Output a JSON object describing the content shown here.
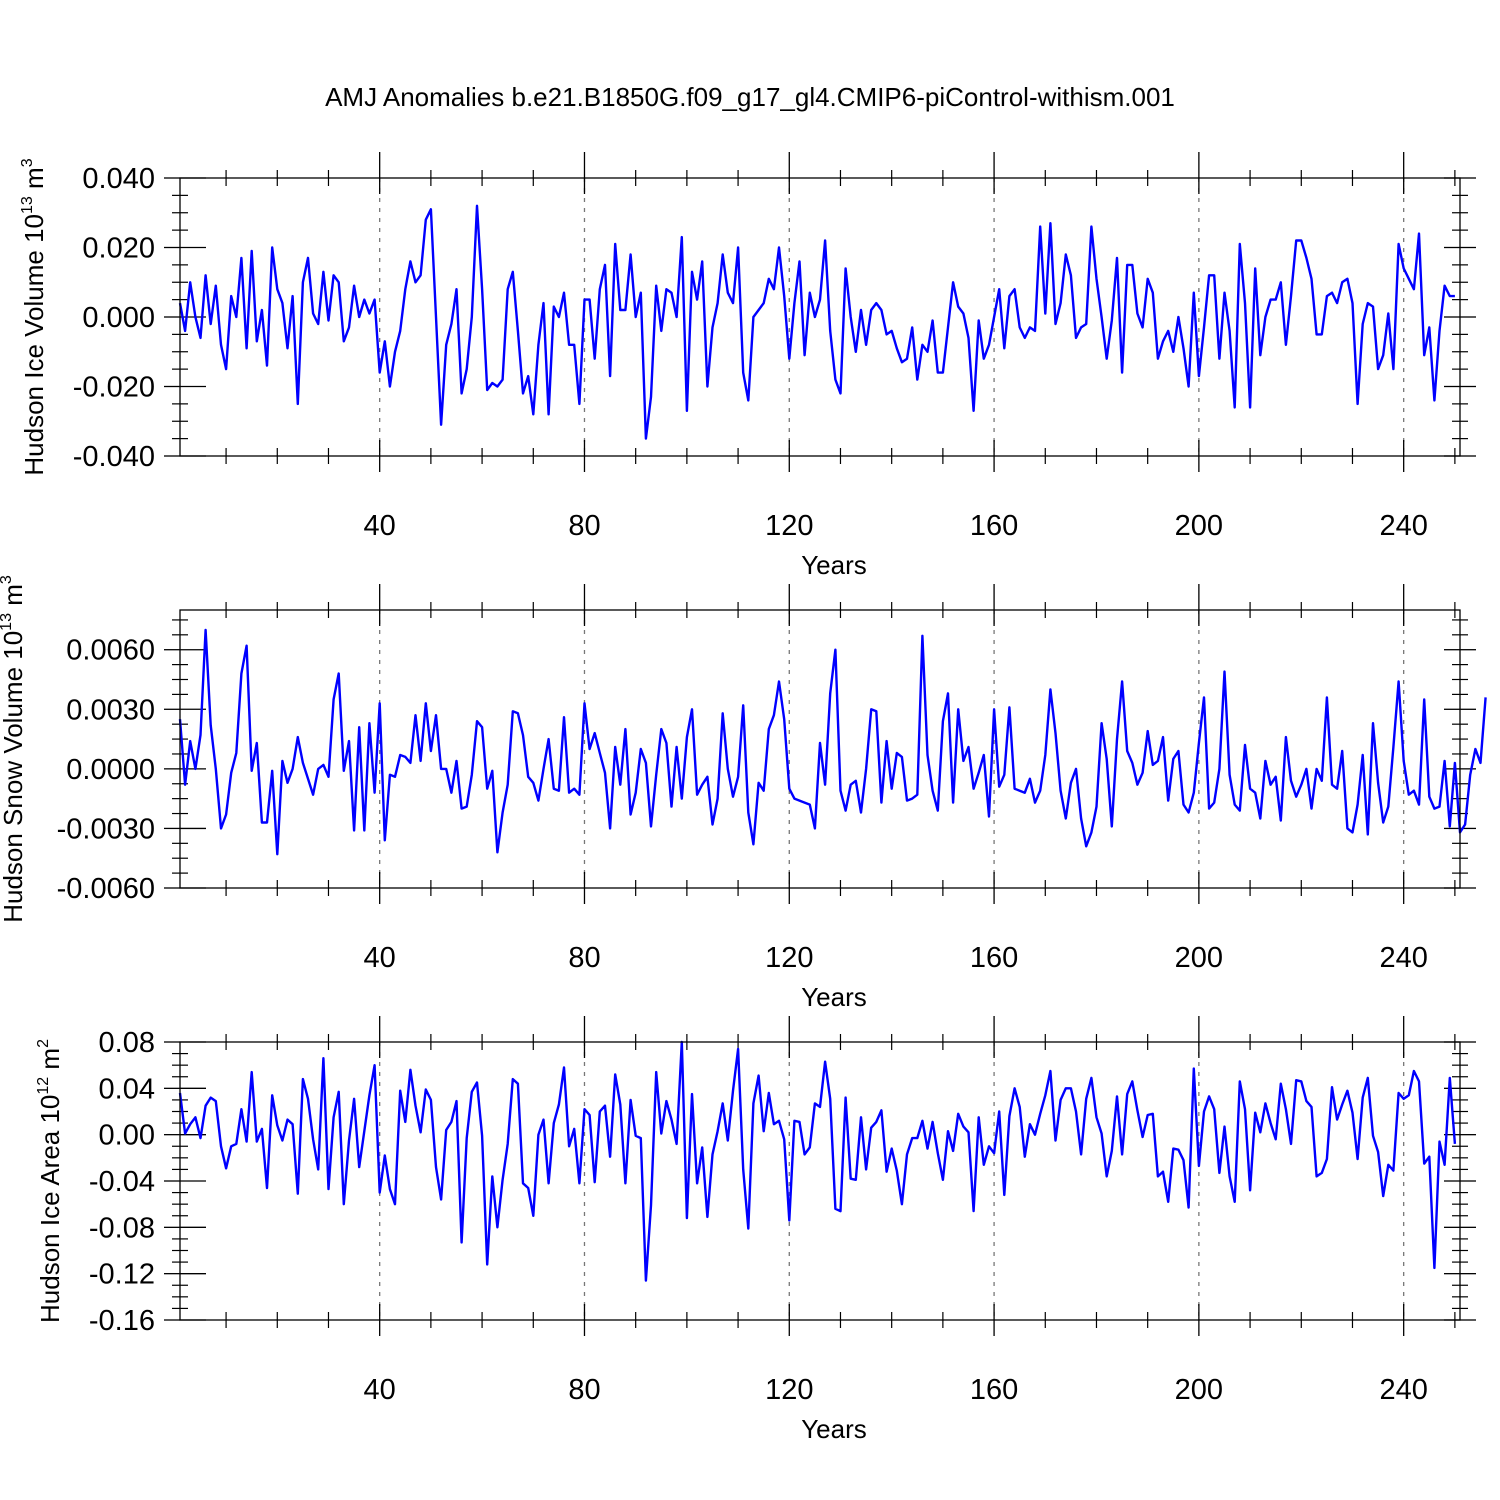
{
  "title": "AMJ Anomalies b.e21.B1850G.f09_g17_gl4.CMIP6-piControl-withism.001",
  "colors": {
    "series": "#0000ff",
    "axis": "#000000",
    "grid": "#777777"
  },
  "chart_data": [
    {
      "type": "line",
      "name": "ice-volume",
      "ylabel": "Hudson Ice Volume",
      "yunits": {
        "base": "10",
        "exp": "13",
        "unit": "m",
        "unit_exp": "3"
      },
      "xlabel": "Years",
      "xlim": [
        1,
        251
      ],
      "ylim": [
        -0.04,
        0.04
      ],
      "yticks": [
        -0.04,
        -0.02,
        0.0,
        0.02,
        0.04
      ],
      "ytick_labels": [
        "-0.040",
        "-0.020",
        "0.000",
        "0.020",
        "0.040"
      ],
      "xticks": [
        40,
        80,
        120,
        160,
        200,
        240
      ],
      "xtick_labels": [
        "40",
        "80",
        "120",
        "160",
        "200",
        "240"
      ],
      "vgrid": [
        40,
        80,
        120,
        160,
        200,
        240
      ],
      "y": [
        0.004,
        -0.004,
        0.01,
        0.0,
        -0.006,
        0.012,
        -0.002,
        0.009,
        -0.008,
        -0.015,
        0.006,
        0.0,
        0.017,
        -0.009,
        0.019,
        -0.007,
        0.002,
        -0.014,
        0.02,
        0.008,
        0.004,
        -0.009,
        0.006,
        -0.025,
        0.01,
        0.017,
        0.001,
        -0.002,
        0.013,
        -0.001,
        0.012,
        0.01,
        -0.007,
        -0.003,
        0.009,
        0.0,
        0.005,
        0.001,
        0.005,
        -0.016,
        -0.007,
        -0.02,
        -0.01,
        -0.004,
        0.008,
        0.016,
        0.01,
        0.012,
        0.028,
        0.031,
        0.0,
        -0.031,
        -0.008,
        -0.002,
        0.008,
        -0.022,
        -0.015,
        0.0,
        0.032,
        0.008,
        -0.021,
        -0.019,
        -0.02,
        -0.018,
        0.008,
        0.013,
        -0.004,
        -0.022,
        -0.017,
        -0.028,
        -0.008,
        0.004,
        -0.028,
        0.003,
        0.0,
        0.007,
        -0.008,
        -0.008,
        -0.025,
        0.005,
        0.005,
        -0.012,
        0.008,
        0.015,
        -0.017,
        0.021,
        0.002,
        0.002,
        0.018,
        0.0,
        0.007,
        -0.035,
        -0.023,
        0.009,
        -0.004,
        0.008,
        0.007,
        0.0,
        0.023,
        -0.027,
        0.013,
        0.005,
        0.016,
        -0.02,
        -0.003,
        0.004,
        0.018,
        0.007,
        0.004,
        0.02,
        -0.016,
        -0.024,
        0.0,
        0.002,
        0.004,
        0.011,
        0.008,
        0.02,
        0.006,
        -0.012,
        0.004,
        0.016,
        -0.011,
        0.007,
        0.0,
        0.005,
        0.022,
        -0.004,
        -0.018,
        -0.022,
        0.014,
        0.0,
        -0.01,
        0.002,
        -0.008,
        0.002,
        0.004,
        0.002,
        -0.005,
        -0.004,
        -0.009,
        -0.013,
        -0.012,
        -0.003,
        -0.018,
        -0.008,
        -0.01,
        -0.001,
        -0.016,
        -0.016,
        -0.003,
        0.01,
        0.003,
        0.001,
        -0.006,
        -0.027,
        -0.001,
        -0.012,
        -0.008,
        0.0,
        0.008,
        -0.009,
        0.006,
        0.008,
        -0.003,
        -0.006,
        -0.003,
        -0.004,
        0.026,
        0.001,
        0.027,
        -0.002,
        0.004,
        0.018,
        0.012,
        -0.006,
        -0.003,
        -0.002,
        0.026,
        0.011,
        0.0,
        -0.012,
        -0.001,
        0.017,
        -0.016,
        0.015,
        0.015,
        0.001,
        -0.003,
        0.011,
        0.007,
        -0.012,
        -0.007,
        -0.004,
        -0.01,
        0.0,
        -0.009,
        -0.02,
        0.007,
        -0.017,
        -0.003,
        0.012,
        0.012,
        -0.012,
        0.007,
        -0.004,
        -0.026,
        0.021,
        0.004,
        -0.026,
        0.014,
        -0.011,
        0.0,
        0.005,
        0.005,
        0.01,
        -0.008,
        0.006,
        0.022,
        0.022,
        0.017,
        0.011,
        -0.005,
        -0.005,
        0.006,
        0.007,
        0.004,
        0.01,
        0.011,
        0.004,
        -0.025,
        -0.002,
        0.004,
        0.003,
        -0.015,
        -0.011,
        0.001,
        -0.015,
        0.021,
        0.014,
        0.011,
        0.008,
        0.024,
        -0.011,
        -0.003,
        -0.024,
        -0.004,
        0.009,
        0.006,
        0.006
      ]
    },
    {
      "type": "line",
      "name": "snow-volume",
      "ylabel": "Hudson Snow Volume",
      "yunits": {
        "base": "10",
        "exp": "13",
        "unit": "m",
        "unit_exp": "3"
      },
      "xlabel": "Years",
      "xlim": [
        1,
        251
      ],
      "ylim": [
        -0.006,
        0.008
      ],
      "yticks": [
        -0.006,
        -0.003,
        0.0,
        0.003,
        0.006
      ],
      "ytick_labels": [
        "-0.0060",
        "-0.0030",
        "0.0000",
        "0.0030",
        "0.0060"
      ],
      "xticks": [
        40,
        80,
        120,
        160,
        200,
        240
      ],
      "xtick_labels": [
        "40",
        "80",
        "120",
        "160",
        "200",
        "240"
      ],
      "vgrid": [
        40,
        80,
        120,
        160,
        200,
        240
      ],
      "y": [
        0.0025,
        -0.0008,
        0.0014,
        0.0,
        0.0017,
        0.007,
        0.0022,
        0.0,
        -0.003,
        -0.0023,
        -0.0002,
        0.0008,
        0.0048,
        0.0062,
        -0.0001,
        0.0013,
        -0.0027,
        -0.0027,
        -0.0001,
        -0.0043,
        0.0004,
        -0.0007,
        0.0,
        0.0016,
        0.0003,
        -0.0005,
        -0.0013,
        0.0,
        0.0002,
        -0.0004,
        0.0035,
        0.0048,
        -0.0001,
        0.0014,
        -0.0031,
        0.0021,
        -0.0031,
        0.0023,
        -0.0012,
        0.0033,
        -0.0036,
        -0.0003,
        -0.0004,
        0.0007,
        0.0006,
        0.0003,
        0.0027,
        0.0004,
        0.0033,
        0.0009,
        0.0027,
        0.0,
        0.0,
        -0.0012,
        0.0004,
        -0.002,
        -0.0019,
        -0.0003,
        0.0024,
        0.0021,
        -0.001,
        -0.0001,
        -0.0042,
        -0.0022,
        -0.0008,
        0.0029,
        0.0028,
        0.0017,
        -0.0004,
        -0.0007,
        -0.0016,
        0.0,
        0.0015,
        -0.001,
        -0.0011,
        0.0026,
        -0.0012,
        -0.001,
        -0.0013,
        0.0033,
        0.001,
        0.0018,
        0.0008,
        -0.0002,
        -0.003,
        0.0011,
        -0.0008,
        0.002,
        -0.0023,
        -0.0012,
        0.001,
        0.0003,
        -0.0029,
        -0.0003,
        0.002,
        0.0013,
        -0.0019,
        0.0011,
        -0.0015,
        0.0016,
        0.003,
        -0.0013,
        -0.0008,
        -0.0004,
        -0.0028,
        -0.0015,
        0.0028,
        0.0,
        -0.0014,
        -0.0004,
        0.0032,
        -0.0022,
        -0.0038,
        -0.0007,
        -0.0011,
        0.002,
        0.0027,
        0.0044,
        0.0025,
        -0.001,
        -0.0015,
        -0.0016,
        -0.0017,
        -0.0018,
        -0.003,
        0.0013,
        -0.0008,
        0.0038,
        0.006,
        -0.0011,
        -0.0021,
        -0.0008,
        -0.0006,
        -0.0022,
        0.0,
        0.003,
        0.0029,
        -0.0017,
        0.0014,
        -0.001,
        0.0008,
        0.0006,
        -0.0016,
        -0.0015,
        -0.0013,
        0.0067,
        0.0007,
        -0.0011,
        -0.0021,
        0.0024,
        0.0038,
        -0.0017,
        0.003,
        0.0004,
        0.0011,
        -0.001,
        -0.0002,
        0.0007,
        -0.0024,
        0.003,
        -0.0009,
        -0.0003,
        0.0031,
        -0.001,
        -0.0011,
        -0.0012,
        -0.0005,
        -0.0017,
        -0.0011,
        0.0007,
        0.004,
        0.0018,
        -0.0011,
        -0.0025,
        -0.0007,
        0.0,
        -0.0025,
        -0.0039,
        -0.0032,
        -0.0019,
        0.0023,
        0.0005,
        -0.0029,
        0.0015,
        0.0044,
        0.0009,
        0.0003,
        -0.0008,
        -0.0002,
        0.0019,
        0.0002,
        0.0004,
        0.0016,
        -0.0016,
        0.0005,
        0.0009,
        -0.0018,
        -0.0022,
        -0.0012,
        0.0013,
        0.0036,
        -0.002,
        -0.0017,
        0.0,
        0.0049,
        -0.0003,
        -0.0018,
        -0.0021,
        0.0012,
        -0.001,
        -0.0012,
        -0.0025,
        0.0004,
        -0.0008,
        -0.0004,
        -0.0026,
        0.0016,
        -0.0006,
        -0.0014,
        -0.0008,
        0.0,
        -0.002,
        0.0,
        -0.0006,
        0.0036,
        -0.0008,
        -0.001,
        0.0009,
        -0.003,
        -0.0032,
        -0.0018,
        0.0007,
        -0.0033,
        0.0023,
        -0.0007,
        -0.0027,
        -0.0019,
        0.0011,
        0.0044,
        0.0004,
        -0.0013,
        -0.0011,
        -0.0018,
        0.0035,
        -0.0014,
        -0.002,
        -0.0019,
        0.0004,
        -0.0029,
        0.0003,
        -0.0032,
        -0.0028,
        -0.0003,
        0.001,
        0.0003,
        0.0036
      ]
    },
    {
      "type": "line",
      "name": "ice-area",
      "ylabel": "Hudson Ice Area",
      "yunits": {
        "base": "10",
        "exp": "12",
        "unit": "m",
        "unit_exp": "2"
      },
      "xlabel": "Years",
      "xlim": [
        1,
        251
      ],
      "ylim": [
        -0.16,
        0.08
      ],
      "yticks": [
        -0.16,
        -0.12,
        -0.08,
        -0.04,
        0.0,
        0.04,
        0.08
      ],
      "ytick_labels": [
        "-0.16",
        "-0.12",
        "-0.08",
        "-0.04",
        "0.00",
        "0.04",
        "0.08"
      ],
      "xticks": [
        40,
        80,
        120,
        160,
        200,
        240
      ],
      "xtick_labels": [
        "40",
        "80",
        "120",
        "160",
        "200",
        "240"
      ],
      "vgrid": [
        40,
        80,
        120,
        160,
        200,
        240
      ],
      "y": [
        0.036,
        0.001,
        0.009,
        0.015,
        -0.003,
        0.025,
        0.032,
        0.029,
        -0.01,
        -0.029,
        -0.01,
        -0.008,
        0.022,
        -0.006,
        0.054,
        -0.006,
        0.005,
        -0.046,
        0.034,
        0.008,
        -0.005,
        0.013,
        0.009,
        -0.051,
        0.048,
        0.031,
        -0.004,
        -0.03,
        0.066,
        -0.047,
        0.015,
        0.037,
        -0.06,
        -0.005,
        0.031,
        -0.028,
        0.003,
        0.034,
        0.06,
        -0.05,
        -0.018,
        -0.047,
        -0.06,
        0.038,
        0.011,
        0.056,
        0.025,
        0.002,
        0.039,
        0.03,
        -0.028,
        -0.056,
        0.004,
        0.011,
        0.029,
        -0.093,
        -0.003,
        0.037,
        0.045,
        -0.001,
        -0.112,
        -0.036,
        -0.08,
        -0.039,
        -0.008,
        0.048,
        0.044,
        -0.042,
        -0.046,
        -0.07,
        0.0,
        0.013,
        -0.042,
        0.01,
        0.026,
        0.058,
        -0.01,
        0.005,
        -0.042,
        0.022,
        0.017,
        -0.041,
        0.02,
        0.025,
        -0.019,
        0.052,
        0.026,
        -0.042,
        0.03,
        -0.001,
        -0.003,
        -0.126,
        -0.061,
        0.054,
        0.001,
        0.029,
        0.013,
        -0.008,
        0.08,
        -0.072,
        0.035,
        -0.042,
        -0.011,
        -0.071,
        -0.017,
        0.003,
        0.027,
        -0.005,
        0.038,
        0.074,
        -0.03,
        -0.081,
        0.027,
        0.051,
        0.003,
        0.036,
        0.009,
        0.012,
        -0.004,
        -0.074,
        0.012,
        0.011,
        -0.017,
        -0.011,
        0.027,
        0.024,
        0.063,
        0.031,
        -0.064,
        -0.066,
        0.032,
        -0.038,
        -0.039,
        0.015,
        -0.03,
        0.006,
        0.011,
        0.021,
        -0.032,
        -0.012,
        -0.031,
        -0.06,
        -0.017,
        -0.003,
        -0.003,
        0.012,
        -0.012,
        0.011,
        -0.016,
        -0.039,
        0.003,
        -0.014,
        0.018,
        0.007,
        0.002,
        -0.066,
        0.015,
        -0.026,
        -0.01,
        -0.016,
        0.02,
        -0.052,
        0.016,
        0.04,
        0.024,
        -0.019,
        0.009,
        0.0,
        0.018,
        0.034,
        0.055,
        -0.005,
        0.03,
        0.04,
        0.04,
        0.02,
        -0.017,
        0.031,
        0.049,
        0.015,
        0.001,
        -0.036,
        -0.014,
        0.033,
        -0.017,
        0.035,
        0.046,
        0.021,
        -0.002,
        0.017,
        0.018,
        -0.036,
        -0.032,
        -0.058,
        -0.012,
        -0.013,
        -0.022,
        -0.063,
        0.057,
        -0.027,
        0.02,
        0.033,
        0.022,
        -0.033,
        0.007,
        -0.036,
        -0.058,
        0.046,
        0.022,
        -0.048,
        0.019,
        0.002,
        0.027,
        0.01,
        -0.004,
        0.044,
        0.022,
        -0.008,
        0.047,
        0.046,
        0.029,
        0.024,
        -0.036,
        -0.033,
        -0.021,
        0.041,
        0.013,
        0.026,
        0.038,
        0.019,
        -0.021,
        0.032,
        0.049,
        -0.001,
        -0.015,
        -0.053,
        -0.026,
        -0.031,
        0.036,
        0.031,
        0.034,
        0.055,
        0.046,
        -0.025,
        -0.019,
        -0.115,
        -0.006,
        -0.026,
        0.049,
        -0.008
      ]
    }
  ]
}
